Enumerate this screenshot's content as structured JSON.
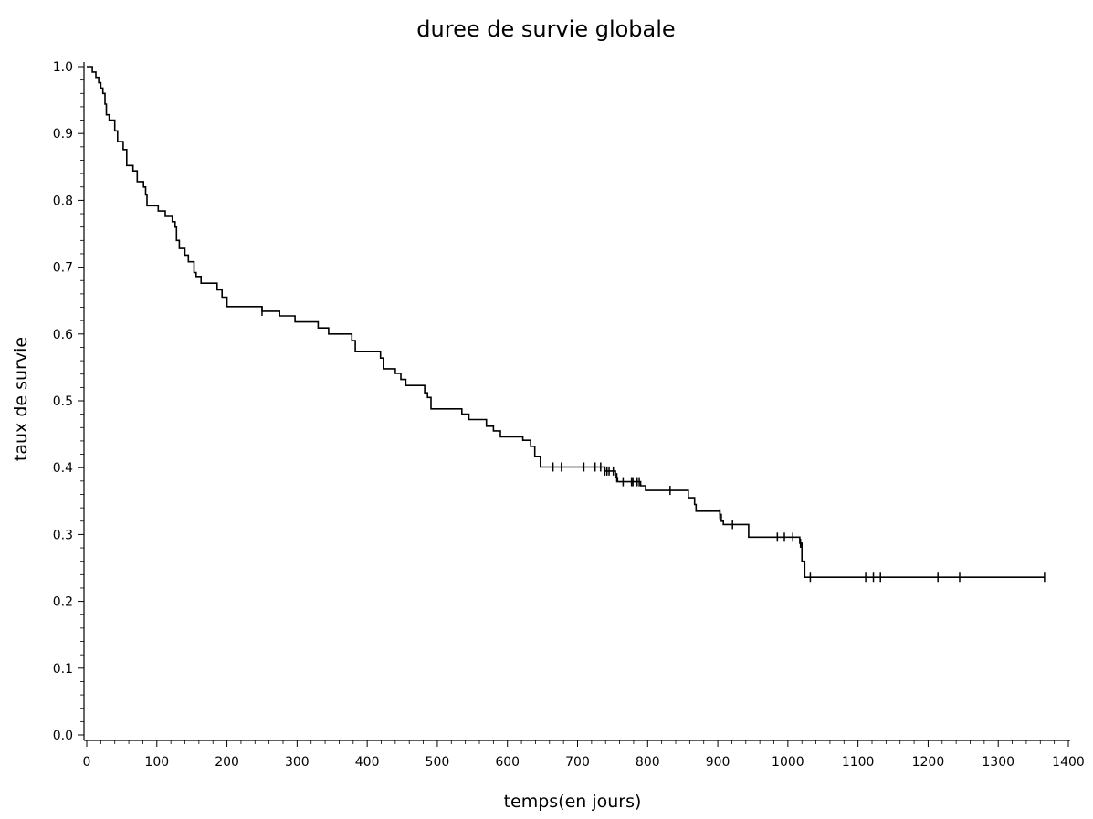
{
  "chart_data": {
    "type": "line",
    "title": "duree de survie globale",
    "xlabel": "temps(en jours)",
    "ylabel": "taux de survie",
    "xlim": [
      0,
      1400
    ],
    "ylim": [
      0,
      1.0
    ],
    "x_ticks": [
      0,
      100,
      200,
      300,
      400,
      500,
      600,
      700,
      800,
      900,
      1000,
      1100,
      1200,
      1300,
      1400
    ],
    "x_tick_labels": [
      "0",
      "100",
      "200",
      "300",
      "400",
      "500",
      "600",
      "700",
      "800",
      "900",
      "1000",
      "1100",
      "1200",
      "1300",
      "1400"
    ],
    "y_ticks": [
      0,
      0.1,
      0.2,
      0.3,
      0.4,
      0.5,
      0.6,
      0.7,
      0.8,
      0.9,
      1.0
    ],
    "y_tick_labels": [
      "0.0",
      "0.1",
      "0.2",
      "0.3",
      "0.4",
      "0.5",
      "0.6",
      "0.7",
      "0.8",
      "0.9",
      "1.0"
    ],
    "grid": false,
    "line_color": "#000000",
    "series": [
      {
        "step_points": [
          [
            0,
            1.0
          ],
          [
            8,
            0.992
          ],
          [
            13,
            0.984
          ],
          [
            17,
            0.976
          ],
          [
            20,
            0.968
          ],
          [
            23,
            0.96
          ],
          [
            26,
            0.944
          ],
          [
            28,
            0.928
          ],
          [
            32,
            0.92
          ],
          [
            40,
            0.904
          ],
          [
            44,
            0.888
          ],
          [
            52,
            0.876
          ],
          [
            57,
            0.852
          ],
          [
            66,
            0.844
          ],
          [
            72,
            0.828
          ],
          [
            81,
            0.82
          ],
          [
            84,
            0.808
          ],
          [
            86,
            0.792
          ],
          [
            102,
            0.784
          ],
          [
            112,
            0.776
          ],
          [
            122,
            0.768
          ],
          [
            126,
            0.76
          ],
          [
            128,
            0.74
          ],
          [
            132,
            0.728
          ],
          [
            140,
            0.718
          ],
          [
            145,
            0.708
          ],
          [
            153,
            0.692
          ],
          [
            156,
            0.686
          ],
          [
            163,
            0.676
          ],
          [
            186,
            0.666
          ],
          [
            193,
            0.655
          ],
          [
            200,
            0.641
          ],
          [
            250,
            0.634
          ],
          [
            275,
            0.627
          ],
          [
            297,
            0.618
          ],
          [
            330,
            0.609
          ],
          [
            345,
            0.6
          ],
          [
            378,
            0.59
          ],
          [
            383,
            0.574
          ],
          [
            419,
            0.564
          ],
          [
            423,
            0.548
          ],
          [
            440,
            0.541
          ],
          [
            448,
            0.532
          ],
          [
            455,
            0.523
          ],
          [
            482,
            0.512
          ],
          [
            486,
            0.505
          ],
          [
            491,
            0.488
          ],
          [
            535,
            0.48
          ],
          [
            545,
            0.472
          ],
          [
            570,
            0.462
          ],
          [
            580,
            0.455
          ],
          [
            590,
            0.446
          ],
          [
            622,
            0.441
          ],
          [
            633,
            0.432
          ],
          [
            639,
            0.417
          ],
          [
            647,
            0.401
          ],
          [
            739,
            0.395
          ],
          [
            754,
            0.385
          ],
          [
            757,
            0.379
          ],
          [
            790,
            0.373
          ],
          [
            797,
            0.366
          ],
          [
            858,
            0.355
          ],
          [
            867,
            0.345
          ],
          [
            869,
            0.335
          ],
          [
            903,
            0.33
          ],
          [
            905,
            0.32
          ],
          [
            908,
            0.315
          ],
          [
            944,
            0.296
          ],
          [
            1017,
            0.287
          ],
          [
            1020,
            0.26
          ],
          [
            1024,
            0.236
          ],
          [
            1366,
            0.236
          ]
        ],
        "censor_times": [
          250,
          665,
          677,
          709,
          725,
          733,
          739,
          742,
          745,
          751,
          756,
          765,
          777,
          779,
          785,
          788,
          832,
          903,
          921,
          985,
          995,
          1007,
          1018,
          1032,
          1111,
          1122,
          1132,
          1214,
          1245,
          1366
        ]
      }
    ]
  }
}
